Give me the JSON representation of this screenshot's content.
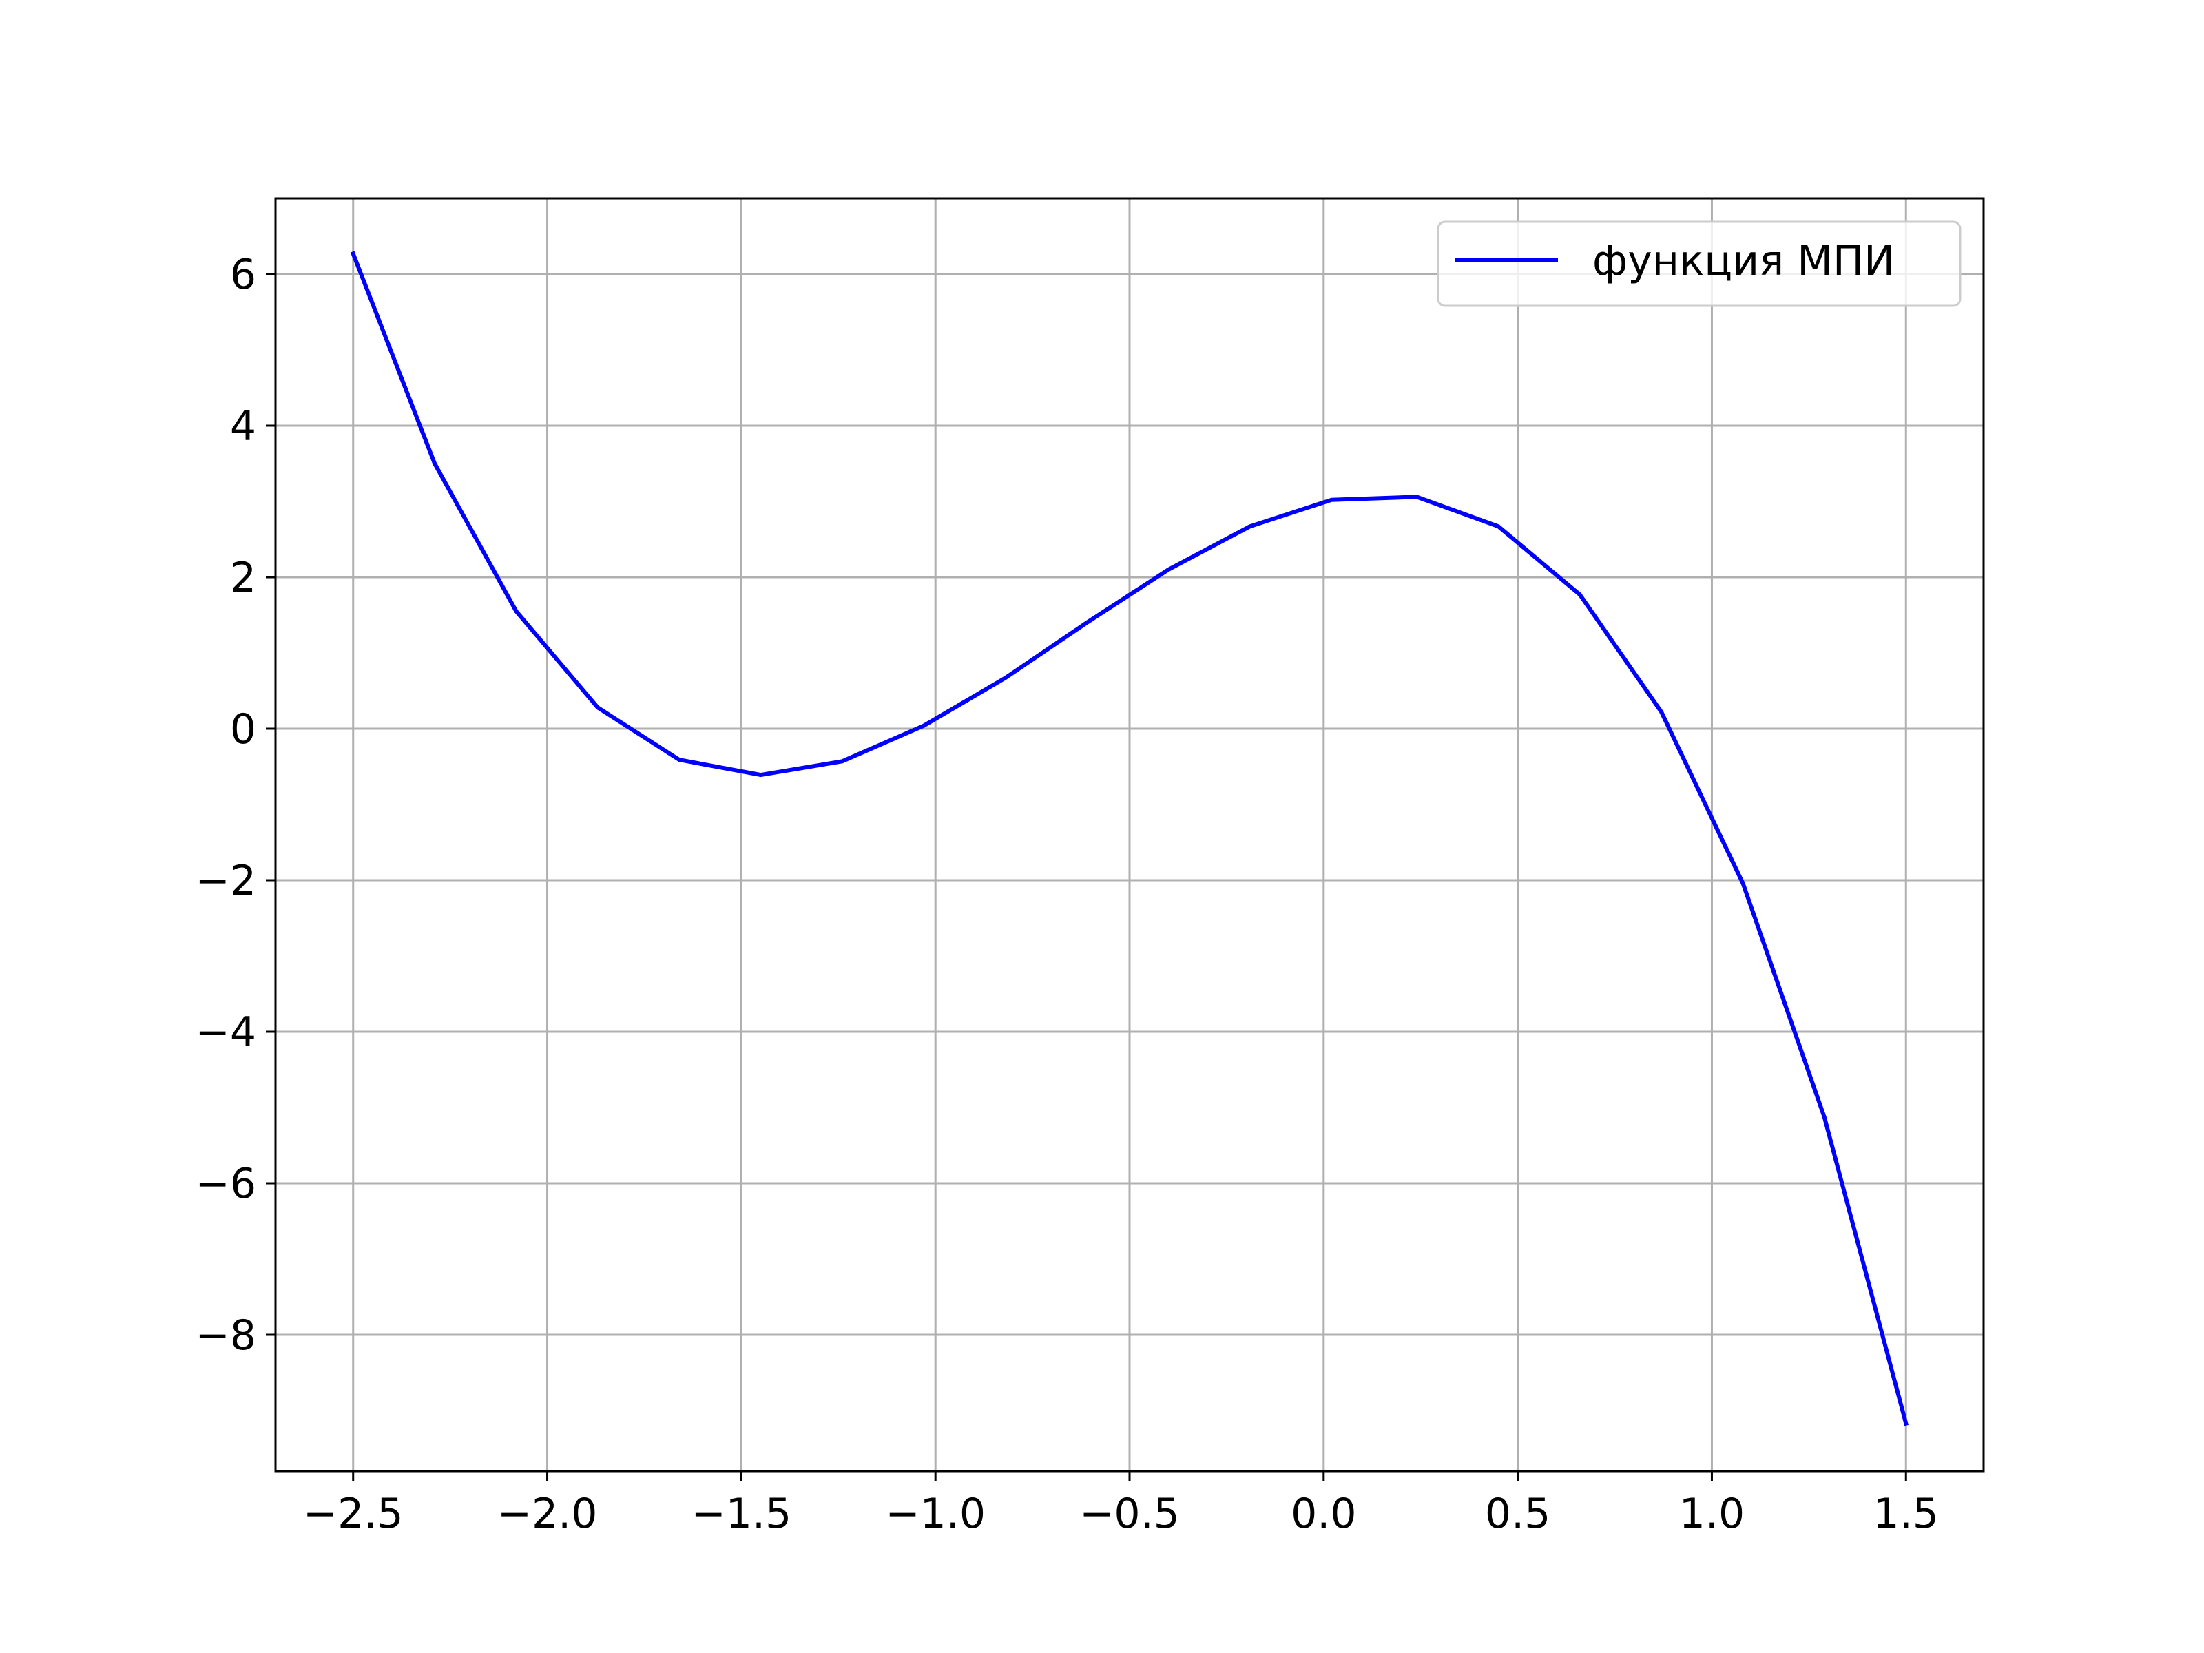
{
  "chart_data": {
    "type": "line",
    "title": "",
    "xlabel": "",
    "ylabel": "",
    "xlim": [
      -2.7,
      1.7
    ],
    "ylim": [
      -9.8,
      7.0
    ],
    "grid": true,
    "legend_position": "top-right",
    "x_ticks": [
      -2.5,
      -2.0,
      -1.5,
      -1.0,
      -0.5,
      0.0,
      0.5,
      1.0,
      1.5
    ],
    "x_tick_labels": [
      "−2.5",
      "−2.0",
      "−1.5",
      "−1.0",
      "−0.5",
      "0.0",
      "0.5",
      "1.0",
      "1.5"
    ],
    "y_ticks": [
      6,
      4,
      2,
      0,
      -2,
      -4,
      -6,
      -8
    ],
    "y_tick_labels": [
      "6",
      "4",
      "2",
      "0",
      "−2",
      "−4",
      "−6",
      "−8"
    ],
    "series": [
      {
        "name": "функция МПИ",
        "color": "#0000ff",
        "x": [
          -2.5,
          -2.29,
          -2.08,
          -1.87,
          -1.66,
          -1.45,
          -1.24,
          -1.03,
          -0.82,
          -0.61,
          -0.4,
          -0.19,
          0.02,
          0.24,
          0.45,
          0.66,
          0.87,
          1.08,
          1.29,
          1.5
        ],
        "y": [
          6.27,
          3.5,
          1.55,
          0.28,
          -0.41,
          -0.61,
          -0.43,
          0.04,
          0.67,
          1.4,
          2.1,
          2.67,
          3.02,
          3.06,
          2.67,
          1.77,
          0.22,
          -2.04,
          -5.13,
          -9.17
        ]
      }
    ]
  }
}
